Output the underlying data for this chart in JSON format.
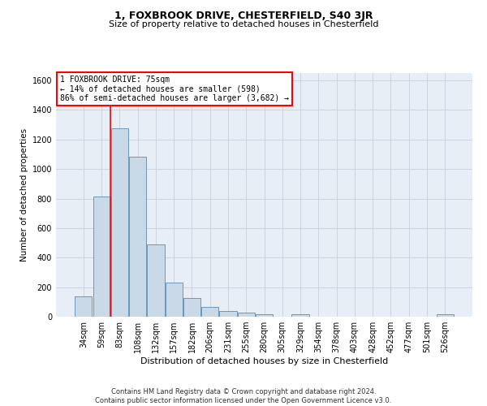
{
  "title": "1, FOXBROOK DRIVE, CHESTERFIELD, S40 3JR",
  "subtitle": "Size of property relative to detached houses in Chesterfield",
  "xlabel": "Distribution of detached houses by size in Chesterfield",
  "ylabel": "Number of detached properties",
  "footer_line1": "Contains HM Land Registry data © Crown copyright and database right 2024.",
  "footer_line2": "Contains public sector information licensed under the Open Government Licence v3.0.",
  "categories": [
    "34sqm",
    "59sqm",
    "83sqm",
    "108sqm",
    "132sqm",
    "157sqm",
    "182sqm",
    "206sqm",
    "231sqm",
    "255sqm",
    "280sqm",
    "305sqm",
    "329sqm",
    "354sqm",
    "378sqm",
    "403sqm",
    "428sqm",
    "452sqm",
    "477sqm",
    "501sqm",
    "526sqm"
  ],
  "values": [
    140,
    813,
    1278,
    1085,
    490,
    230,
    127,
    65,
    40,
    27,
    17,
    0,
    15,
    0,
    0,
    0,
    0,
    0,
    0,
    0,
    15
  ],
  "bar_color": "#c9d9e8",
  "bar_edge_color": "#5a8ab5",
  "ylim": [
    0,
    1650
  ],
  "yticks": [
    0,
    200,
    400,
    600,
    800,
    1000,
    1200,
    1400,
    1600
  ],
  "annotation_text": "1 FOXBROOK DRIVE: 75sqm\n← 14% of detached houses are smaller (598)\n86% of semi-detached houses are larger (3,682) →",
  "vline_x": 1.5,
  "grid_color": "#c8d0dc",
  "bg_color": "#e8eef5",
  "title_fontsize": 9,
  "subtitle_fontsize": 8,
  "xlabel_fontsize": 8,
  "ylabel_fontsize": 7.5,
  "tick_fontsize": 7,
  "annot_fontsize": 7,
  "footer_fontsize": 6
}
